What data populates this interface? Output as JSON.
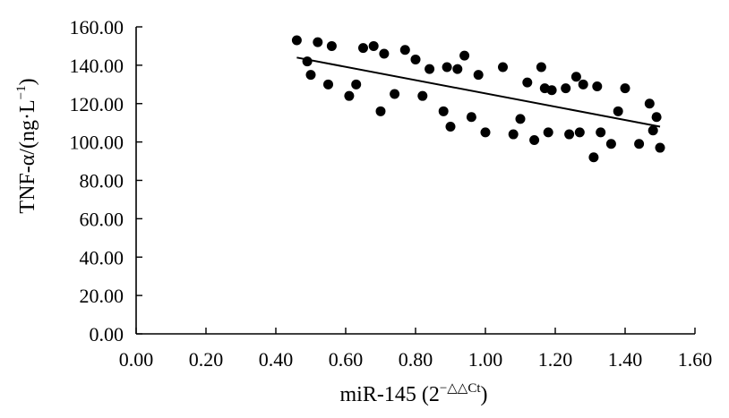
{
  "chart_data": {
    "type": "scatter",
    "title": "",
    "xlabel": {
      "main": "miR-145 (2",
      "sup": "−△△Ct",
      "close": ")"
    },
    "ylabel": {
      "main": "TNF-α/(ng·L",
      "sup": "−1",
      "close": ")"
    },
    "xlim": [
      0,
      1.6
    ],
    "ylim": [
      0,
      160
    ],
    "x_ticks": [
      "0.00",
      "0.20",
      "0.40",
      "0.60",
      "0.80",
      "1.00",
      "1.20",
      "1.40",
      "1.60"
    ],
    "y_ticks": [
      "0.00",
      "20.00",
      "40.00",
      "60.00",
      "80.00",
      "100.00",
      "120.00",
      "140.00",
      "160.00"
    ],
    "grid": false,
    "legend": "none",
    "trendline": {
      "x": [
        0.46,
        1.5
      ],
      "y": [
        144,
        108
      ]
    },
    "points": [
      {
        "x": 0.46,
        "y": 153
      },
      {
        "x": 0.49,
        "y": 142
      },
      {
        "x": 0.5,
        "y": 135
      },
      {
        "x": 0.52,
        "y": 152
      },
      {
        "x": 0.55,
        "y": 130
      },
      {
        "x": 0.56,
        "y": 150
      },
      {
        "x": 0.61,
        "y": 124
      },
      {
        "x": 0.63,
        "y": 130
      },
      {
        "x": 0.65,
        "y": 149
      },
      {
        "x": 0.68,
        "y": 150
      },
      {
        "x": 0.7,
        "y": 116
      },
      {
        "x": 0.71,
        "y": 146
      },
      {
        "x": 0.74,
        "y": 125
      },
      {
        "x": 0.77,
        "y": 148
      },
      {
        "x": 0.8,
        "y": 143
      },
      {
        "x": 0.82,
        "y": 124
      },
      {
        "x": 0.84,
        "y": 138
      },
      {
        "x": 0.88,
        "y": 116
      },
      {
        "x": 0.89,
        "y": 139
      },
      {
        "x": 0.9,
        "y": 108
      },
      {
        "x": 0.92,
        "y": 138
      },
      {
        "x": 0.94,
        "y": 145
      },
      {
        "x": 0.96,
        "y": 113
      },
      {
        "x": 0.98,
        "y": 135
      },
      {
        "x": 1.0,
        "y": 105
      },
      {
        "x": 1.05,
        "y": 139
      },
      {
        "x": 1.08,
        "y": 104
      },
      {
        "x": 1.1,
        "y": 112
      },
      {
        "x": 1.12,
        "y": 131
      },
      {
        "x": 1.14,
        "y": 101
      },
      {
        "x": 1.16,
        "y": 139
      },
      {
        "x": 1.17,
        "y": 128
      },
      {
        "x": 1.18,
        "y": 105
      },
      {
        "x": 1.19,
        "y": 127
      },
      {
        "x": 1.23,
        "y": 128
      },
      {
        "x": 1.24,
        "y": 104
      },
      {
        "x": 1.26,
        "y": 134
      },
      {
        "x": 1.27,
        "y": 105
      },
      {
        "x": 1.28,
        "y": 130
      },
      {
        "x": 1.31,
        "y": 92
      },
      {
        "x": 1.32,
        "y": 129
      },
      {
        "x": 1.33,
        "y": 105
      },
      {
        "x": 1.36,
        "y": 99
      },
      {
        "x": 1.38,
        "y": 116
      },
      {
        "x": 1.4,
        "y": 128
      },
      {
        "x": 1.44,
        "y": 99
      },
      {
        "x": 1.47,
        "y": 120
      },
      {
        "x": 1.48,
        "y": 106
      },
      {
        "x": 1.49,
        "y": 113
      },
      {
        "x": 1.5,
        "y": 97
      }
    ]
  }
}
